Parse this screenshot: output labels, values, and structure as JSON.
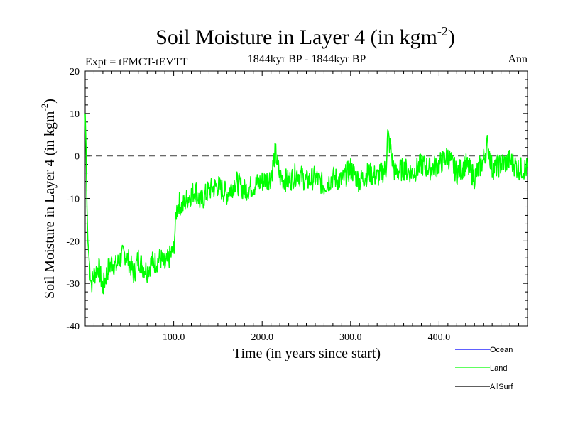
{
  "chart_data": {
    "type": "line",
    "title": "Soil Moisture in Layer 4 (in kgm",
    "title_sup": "-2",
    "title_close": ")",
    "subtitle_left": "Expt = tFMCT-tEVTT",
    "subtitle_center": "1844kyr BP - 1844kyr BP",
    "subtitle_right": "Ann",
    "xlabel": "Time (in years since start)",
    "ylabel": "Soil Moisture in Layer 4 (in kgm",
    "ylabel_sup": "-2",
    "ylabel_close": ")",
    "xlim": [
      0,
      500
    ],
    "ylim": [
      -40,
      20
    ],
    "xticks": [
      100,
      200,
      300,
      400
    ],
    "xtick_labels": [
      "100.0",
      "200.0",
      "300.0",
      "400.0"
    ],
    "yticks": [
      20,
      10,
      0,
      -10,
      -20,
      -30,
      -40
    ],
    "ytick_labels": [
      "20",
      "10",
      "0",
      "-10",
      "-20",
      "-30",
      "-40"
    ],
    "reference_line": {
      "y": 0,
      "style": "dashed"
    },
    "series": [
      {
        "name": "Land",
        "color": "#00ff00",
        "x": [
          0,
          1,
          2,
          3,
          5,
          7,
          10,
          15,
          20,
          25,
          30,
          35,
          40,
          45,
          50,
          55,
          60,
          65,
          70,
          75,
          80,
          85,
          90,
          95,
          100,
          103,
          106,
          110,
          115,
          120,
          125,
          130,
          140,
          150,
          160,
          170,
          180,
          190,
          200,
          210,
          215,
          220,
          230,
          240,
          250,
          260,
          270,
          280,
          290,
          300,
          310,
          320,
          330,
          340,
          342,
          350,
          360,
          370,
          380,
          390,
          400,
          410,
          420,
          430,
          440,
          450,
          455,
          460,
          470,
          480,
          490,
          500
        ],
        "values": [
          10,
          2,
          -12,
          -20,
          -26,
          -30,
          -28,
          -26,
          -31,
          -27,
          -25,
          -26,
          -24,
          -23,
          -25,
          -28,
          -24,
          -26,
          -27,
          -25,
          -25,
          -24,
          -26,
          -24,
          -22,
          -13,
          -11,
          -12,
          -10,
          -9,
          -8,
          -11,
          -8,
          -7,
          -9,
          -6,
          -8,
          -7,
          -6,
          -5,
          1,
          -5,
          -6,
          -4,
          -6,
          -5,
          -7,
          -5,
          -6,
          -3,
          -6,
          -4,
          -5,
          -3,
          5,
          -4,
          -3,
          -4,
          -2,
          -3,
          -2,
          0,
          -4,
          -2,
          -5,
          -1,
          3,
          -3,
          -2,
          -1,
          -3,
          -3
        ]
      },
      {
        "name": "Ocean",
        "color": "#0000ff",
        "x": [],
        "values": []
      },
      {
        "name": "AllSurf",
        "color": "#000000",
        "x": [],
        "values": []
      }
    ],
    "legend": {
      "placement": "bottom-right",
      "entries": [
        {
          "label": "Ocean",
          "color": "#0000ff"
        },
        {
          "label": "Land",
          "color": "#00ff00"
        },
        {
          "label": "AllSurf",
          "color": "#000000"
        }
      ]
    }
  }
}
